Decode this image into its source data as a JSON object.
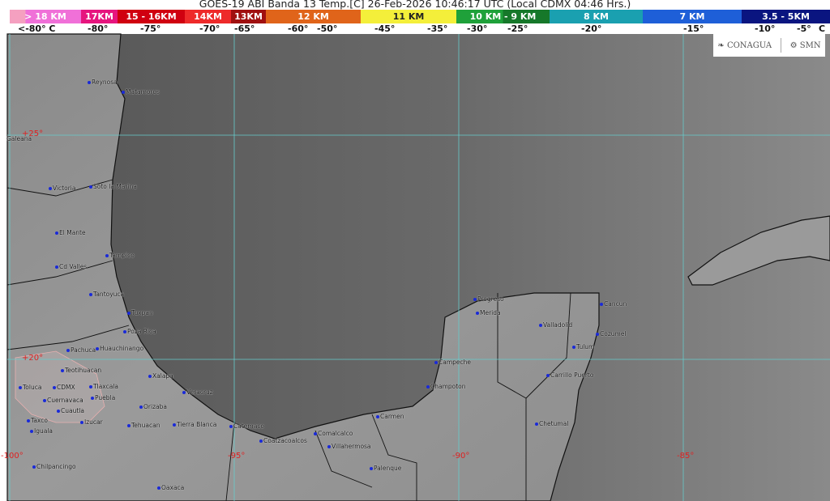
{
  "title": "GOES-19 ABI Banda 13 Temp.[C] 26-Feb-2026 10:46:17 UTC (Local CDMX  04:46 Hrs.)",
  "legend": {
    "segments": [
      {
        "label": "> 18 KM",
        "color": "#f070d8"
      },
      {
        "label": "17KM",
        "color": "#e6157e"
      },
      {
        "label": "15 - 16KM",
        "color": "#d00010"
      },
      {
        "label": "14KM",
        "color": "#ee2a2a"
      },
      {
        "label": "13KM",
        "color": "#a01010"
      },
      {
        "label": "12 KM",
        "color": "#e0641a"
      },
      {
        "label": "11 KM",
        "color": "#f4ef3a"
      },
      {
        "label": "10 KM -  9 KM",
        "color": "#1c9a36"
      },
      {
        "label": "8 KM",
        "color": "#1aa0b0"
      },
      {
        "label": "7 KM",
        "color": "#1e5fd8"
      },
      {
        "label": "3.5 - 5KM",
        "color": "#0a1580"
      }
    ],
    "temps": [
      "<-80° C",
      "-80°",
      "-75°",
      "-70°",
      "-65°",
      "-60°",
      "-50°",
      "-45°",
      "-35°",
      "-30°",
      "-25°",
      "-20°",
      "-15°",
      "-10°",
      "-5°",
      "C"
    ]
  },
  "logos": {
    "left": "CONAGUA",
    "right": "SMN"
  },
  "grid_labels": [
    "+25°",
    "+20°",
    "-100°",
    "-95°",
    "-90°",
    "-85°"
  ],
  "cities": [
    "Reynosa",
    "Matamoros",
    "Galeana",
    "Victoria",
    "Soto la Marina",
    "El Mante",
    "Tampico",
    "Cd Valles",
    "Tantoyuca",
    "Tuxpan",
    "Poza Rica",
    "Huauchinango",
    "Pachuca",
    "Teotihuacan",
    "Toluca",
    "CDMX",
    "Tlaxcala",
    "Puebla",
    "Cuernavaca",
    "Cuautla",
    "Taxco",
    "Iguala",
    "Izucar",
    "Xalapa",
    "Veracruz",
    "Orizaba",
    "Tehuacan",
    "Tierra Blanca",
    "Catemaco",
    "Coatzacoalcos",
    "Comalcalco",
    "Villahermosa",
    "Palenque",
    "Chilpancingo",
    "Oaxaca",
    "Carmen",
    "Champoton",
    "Campeche",
    "Progreso",
    "Merida",
    "Valladolid",
    "Cancun",
    "Cozumel",
    "Tulum",
    "Carrillo Puerto",
    "Chetumal"
  ]
}
